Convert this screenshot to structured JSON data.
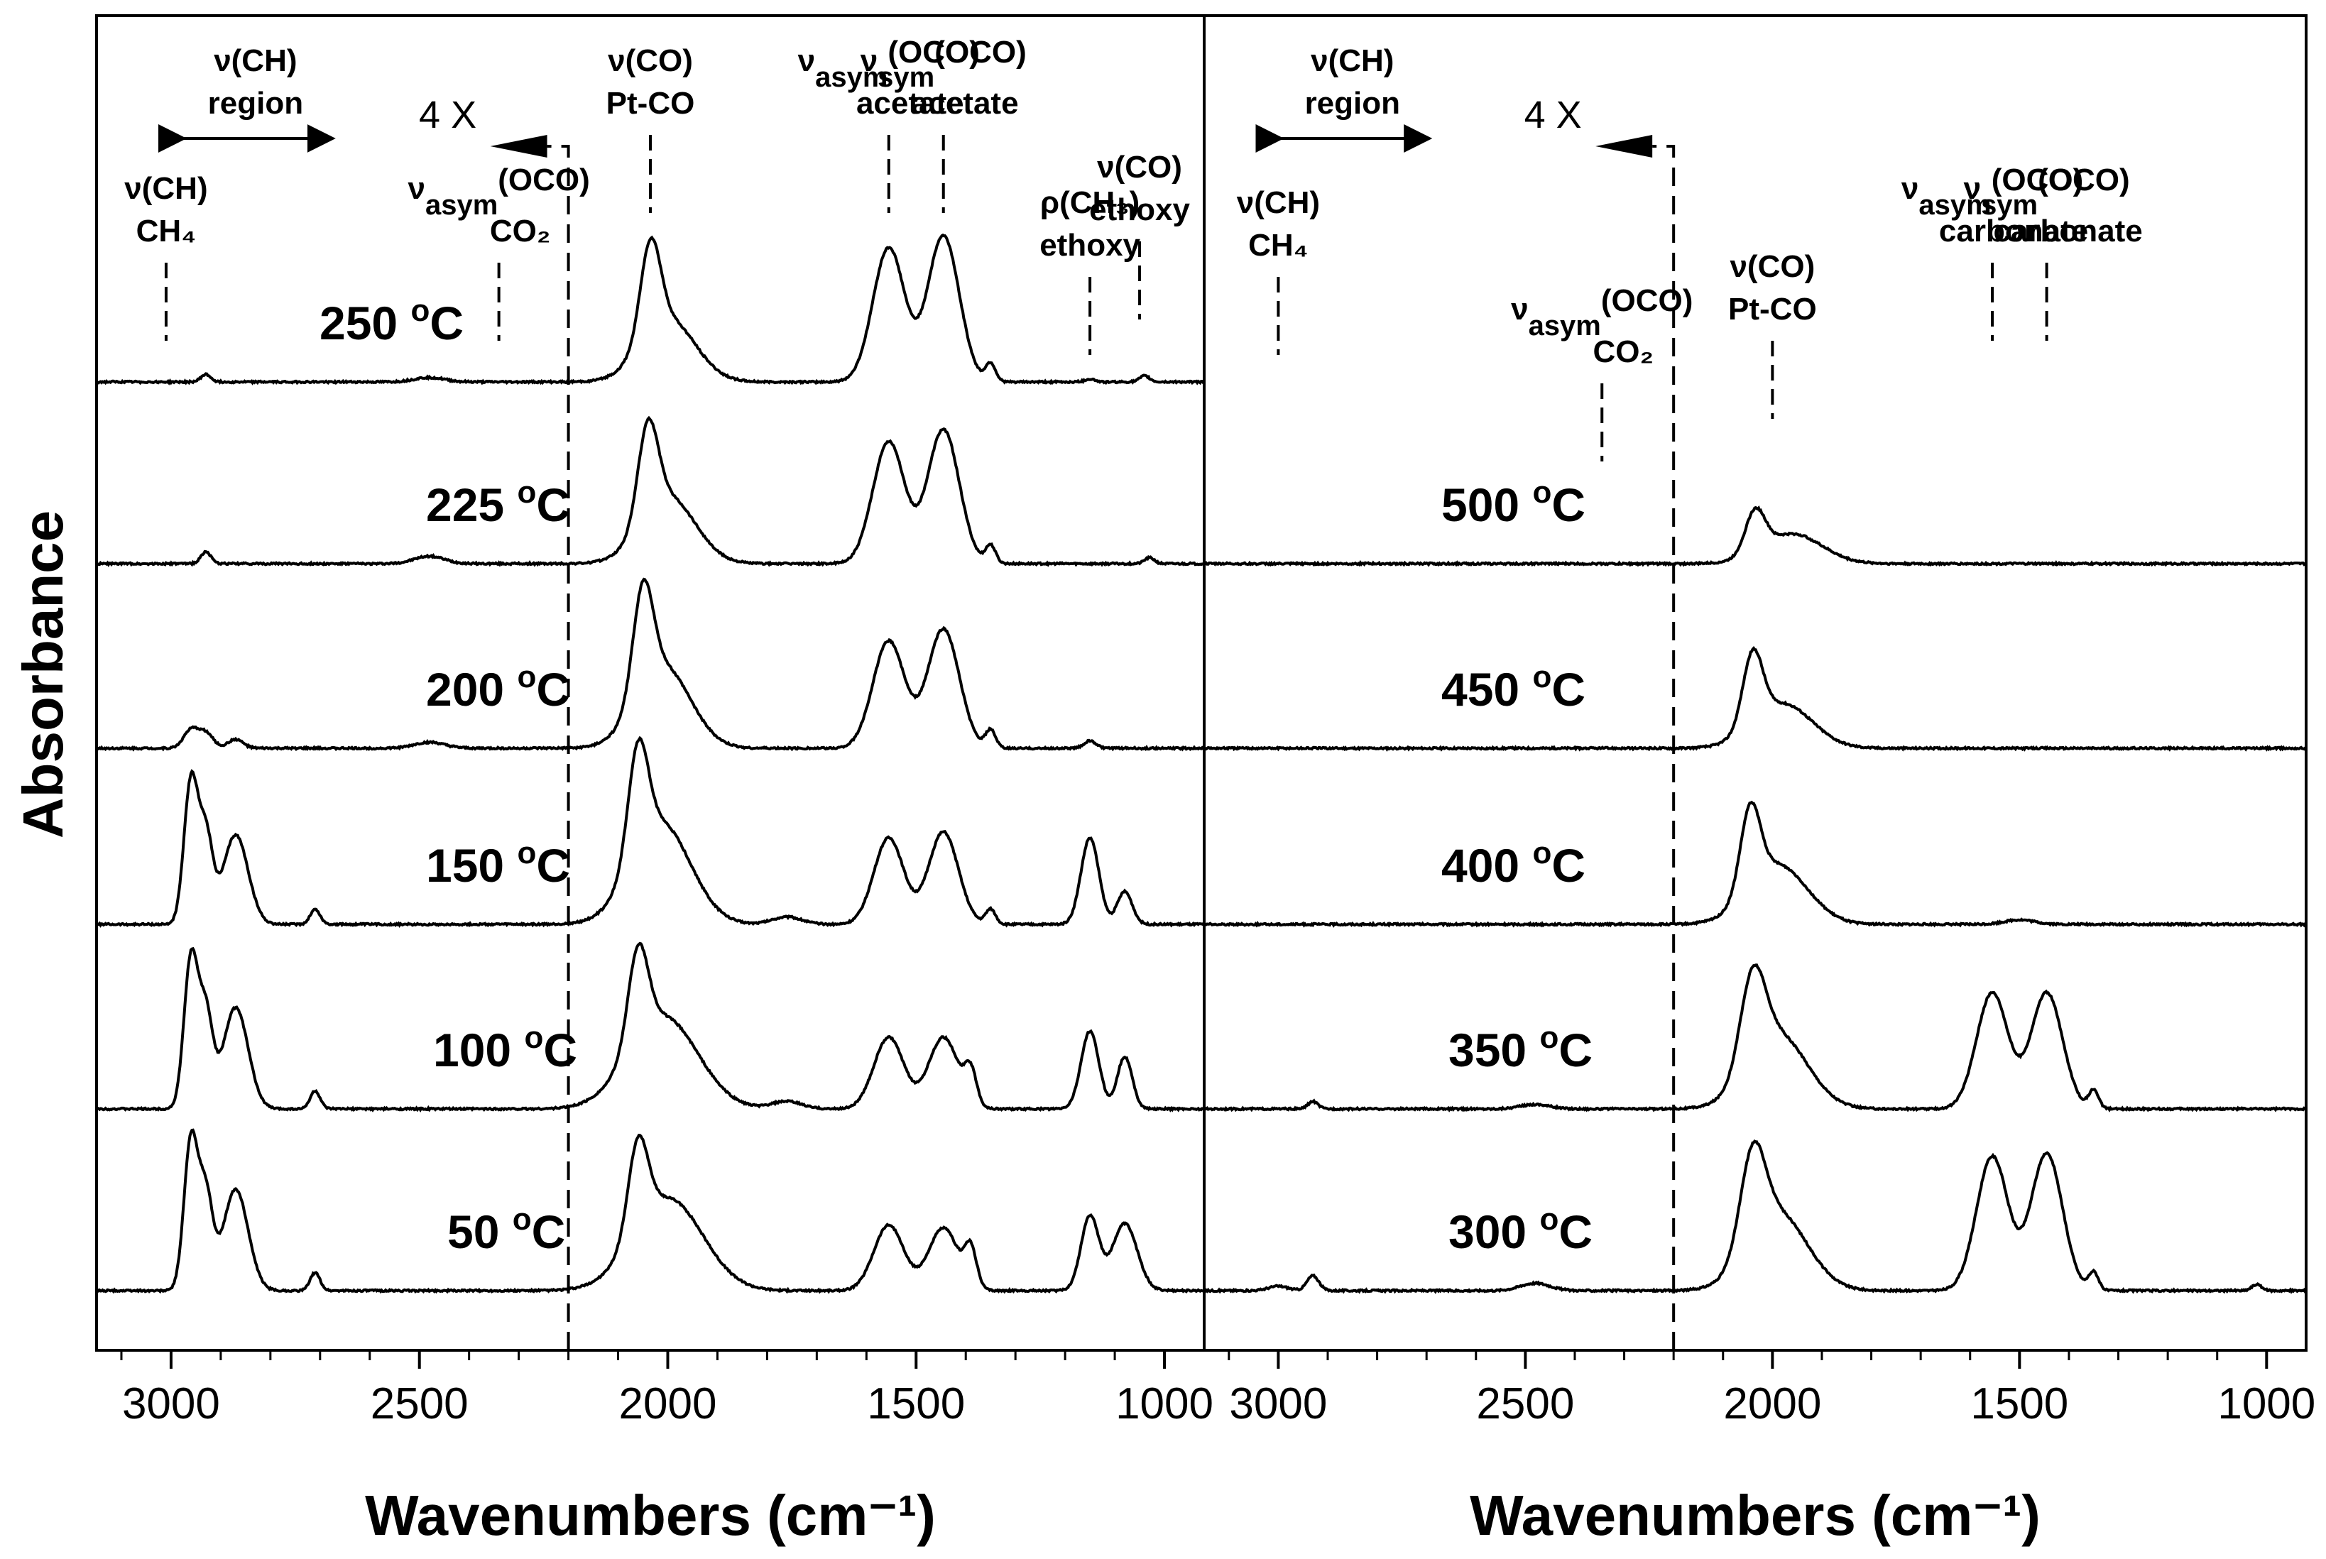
{
  "chart_data": {
    "type": "line",
    "ylabel": "Absorbance",
    "note": "Stacked infrared absorbance spectra; region above 2200 cm^-1 magnified 4 X",
    "panels": [
      {
        "id": "left",
        "xlabel": "Wavenumbers (cm⁻¹)",
        "xlim": [
          3150,
          920
        ],
        "xticks": [
          "3000",
          "2500",
          "2000",
          "1500",
          "1000"
        ],
        "xtick_values": [
          3000,
          2500,
          2000,
          1500,
          1000
        ],
        "magnification_label": "4 X",
        "magnification_boundary": 2200,
        "annotations": [
          {
            "line1": "ν(CH)",
            "line2": "region",
            "type": "range",
            "from": 2980,
            "to": 2680
          },
          {
            "line1": "ν(CH)",
            "line2": "CH₄",
            "position": 3010
          },
          {
            "line1": "ν",
            "sub": "asym",
            "sup": "(OCO)",
            "line2": "CO₂",
            "position": 2340
          },
          {
            "line1": "ν(CO)",
            "line2": "Pt-CO",
            "position": 2035
          },
          {
            "line1": "ν",
            "sub": "asym",
            "sup": "(OCO)",
            "line2": "acetate",
            "position": 1555
          },
          {
            "line1": "ν",
            "sub": "sym",
            "sup": "(OCO)",
            "line2": "acetate",
            "position": 1445
          },
          {
            "line1": "ρ(CH₃)",
            "line2": "ethoxy",
            "position": 1150
          },
          {
            "line1": "ν(CO)",
            "line2": "ethoxy",
            "position": 1050
          }
        ],
        "series": [
          {
            "name": "250 °C",
            "label": "250",
            "unit": "oC",
            "peaks": [
              [
                2035,
                0.62,
                20
              ],
              [
                2000,
                0.42,
                55
              ],
              [
                1555,
                0.9,
                32
              ],
              [
                1445,
                0.98,
                32
              ],
              [
                1350,
                0.12,
                10
              ],
              [
                2930,
                0.05,
                10
              ],
              [
                2480,
                0.03,
                30
              ],
              [
                1150,
                0.02,
                10
              ],
              [
                1040,
                0.04,
                10
              ]
            ]
          },
          {
            "name": "225 °C",
            "label": "225",
            "unit": "oC",
            "peaks": [
              [
                2040,
                0.62,
                20
              ],
              [
                2000,
                0.45,
                55
              ],
              [
                1555,
                0.82,
                32
              ],
              [
                1445,
                0.9,
                32
              ],
              [
                1350,
                0.12,
                10
              ],
              [
                2930,
                0.08,
                10
              ],
              [
                2480,
                0.05,
                30
              ],
              [
                1030,
                0.04,
                10
              ]
            ]
          },
          {
            "name": "200 °C",
            "label": "200",
            "unit": "oC",
            "peaks": [
              [
                2050,
                0.7,
                20
              ],
              [
                2010,
                0.55,
                55
              ],
              [
                1555,
                0.72,
                32
              ],
              [
                1445,
                0.8,
                32
              ],
              [
                1350,
                0.12,
                10
              ],
              [
                2960,
                0.12,
                15
              ],
              [
                2930,
                0.1,
                15
              ],
              [
                2870,
                0.06,
                15
              ],
              [
                2480,
                0.04,
                30
              ],
              [
                1150,
                0.05,
                12
              ]
            ]
          },
          {
            "name": "150 °C",
            "label": "150",
            "unit": "oC",
            "peaks": [
              [
                2060,
                0.72,
                20
              ],
              [
                2015,
                0.68,
                60
              ],
              [
                1555,
                0.58,
                30
              ],
              [
                1445,
                0.62,
                30
              ],
              [
                1350,
                0.1,
                10
              ],
              [
                2960,
                0.95,
                14
              ],
              [
                2930,
                0.58,
                14
              ],
              [
                2870,
                0.6,
                25
              ],
              [
                2710,
                0.1,
                10
              ],
              [
                1760,
                0.05,
                30
              ],
              [
                1150,
                0.58,
                18
              ],
              [
                1080,
                0.22,
                15
              ]
            ]
          },
          {
            "name": "100 °C",
            "label": "100",
            "unit": "oC",
            "peaks": [
              [
                2060,
                0.62,
                20
              ],
              [
                2010,
                0.62,
                70
              ],
              [
                1555,
                0.48,
                30
              ],
              [
                1445,
                0.48,
                30
              ],
              [
                1390,
                0.22,
                12
              ],
              [
                2960,
                1.0,
                14
              ],
              [
                2930,
                0.62,
                14
              ],
              [
                2870,
                0.68,
                25
              ],
              [
                2710,
                0.12,
                10
              ],
              [
                1760,
                0.05,
                30
              ],
              [
                1150,
                0.52,
                18
              ],
              [
                1080,
                0.35,
                15
              ]
            ]
          },
          {
            "name": "50 °C",
            "label": "50",
            "unit": "oC",
            "peaks": [
              [
                2060,
                0.6,
                20
              ],
              [
                2000,
                0.62,
                70
              ],
              [
                1555,
                0.44,
                30
              ],
              [
                1445,
                0.42,
                30
              ],
              [
                1390,
                0.25,
                12
              ],
              [
                2960,
                1.0,
                14
              ],
              [
                2930,
                0.62,
                14
              ],
              [
                2870,
                0.68,
                25
              ],
              [
                2710,
                0.12,
                10
              ],
              [
                1150,
                0.5,
                18
              ],
              [
                1080,
                0.45,
                25
              ]
            ]
          }
        ]
      },
      {
        "id": "right",
        "xlabel": "Wavenumbers (cm⁻¹)",
        "xlim": [
          3150,
          920
        ],
        "xticks": [
          "3000",
          "2500",
          "2000",
          "1500",
          "1000"
        ],
        "xtick_values": [
          3000,
          2500,
          2000,
          1500,
          1000
        ],
        "magnification_label": "4 X",
        "magnification_boundary": 2200,
        "annotations": [
          {
            "line1": "ν(CH)",
            "line2": "region",
            "type": "range",
            "from": 3000,
            "to": 2700
          },
          {
            "line1": "ν(CH)",
            "line2": "CH₄",
            "position": 3000
          },
          {
            "line1": "ν",
            "sub": "asym",
            "sup": "(OCO)",
            "line2": "CO₂",
            "position": 2345
          },
          {
            "line1": "ν(CO)",
            "line2": "Pt-CO",
            "position": 2000
          },
          {
            "line1": "ν",
            "sub": "asym",
            "sup": "(OCO)",
            "line2": "carbonate",
            "position": 1555
          },
          {
            "line1": "ν",
            "sub": "sym",
            "sup": "(OCO)",
            "line2": "carbonate",
            "position": 1445
          }
        ],
        "series": [
          {
            "name": "500 °C",
            "label": "500",
            "unit": "oC",
            "peaks": [
              [
                2035,
                0.28,
                20
              ],
              [
                1960,
                0.2,
                60
              ]
            ]
          },
          {
            "name": "450 °C",
            "label": "450",
            "unit": "oC",
            "peaks": [
              [
                2040,
                0.48,
                20
              ],
              [
                1980,
                0.3,
                60
              ]
            ]
          },
          {
            "name": "400 °C",
            "label": "400",
            "unit": "oC",
            "peaks": [
              [
                2045,
                0.55,
                20
              ],
              [
                1990,
                0.4,
                60
              ],
              [
                1500,
                0.03,
                30
              ]
            ]
          },
          {
            "name": "350 °C",
            "label": "350",
            "unit": "oC",
            "peaks": [
              [
                2040,
                0.6,
                25
              ],
              [
                1990,
                0.5,
                60
              ],
              [
                1555,
                0.78,
                32
              ],
              [
                1445,
                0.78,
                32
              ],
              [
                1350,
                0.12,
                10
              ],
              [
                2930,
                0.05,
                10
              ],
              [
                2480,
                0.03,
                30
              ]
            ]
          },
          {
            "name": "300 °C",
            "label": "300",
            "unit": "oC",
            "peaks": [
              [
                2040,
                0.62,
                25
              ],
              [
                1990,
                0.52,
                60
              ],
              [
                1555,
                0.9,
                32
              ],
              [
                1445,
                0.92,
                32
              ],
              [
                1350,
                0.12,
                10
              ],
              [
                2930,
                0.1,
                12
              ],
              [
                3000,
                0.03,
                20
              ],
              [
                2480,
                0.05,
                30
              ],
              [
                1020,
                0.04,
                10
              ]
            ]
          }
        ]
      }
    ]
  }
}
